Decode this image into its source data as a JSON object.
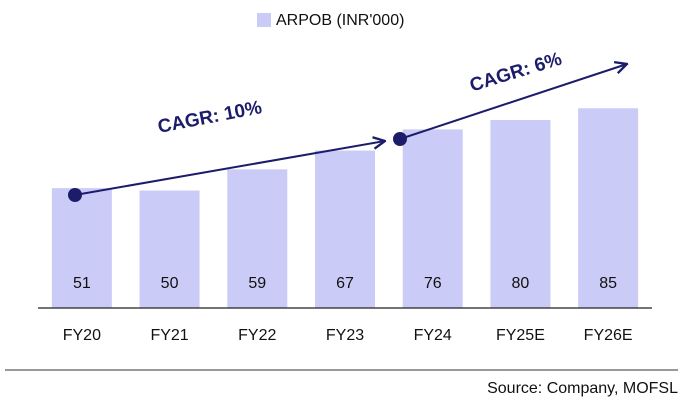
{
  "chart_data": {
    "type": "bar",
    "categories": [
      "FY20",
      "FY21",
      "FY22",
      "FY23",
      "FY24",
      "FY25E",
      "FY26E"
    ],
    "series": [
      {
        "name": "ARPOB (INR'000)",
        "color": "#cbcbf7",
        "values": [
          51,
          50,
          59,
          67,
          76,
          80,
          85
        ]
      }
    ],
    "ylim": [
      0,
      100
    ],
    "annotations": [
      "CAGR: 10%",
      "CAGR: 6%"
    ],
    "source": "Source: Company, MOFSL"
  }
}
